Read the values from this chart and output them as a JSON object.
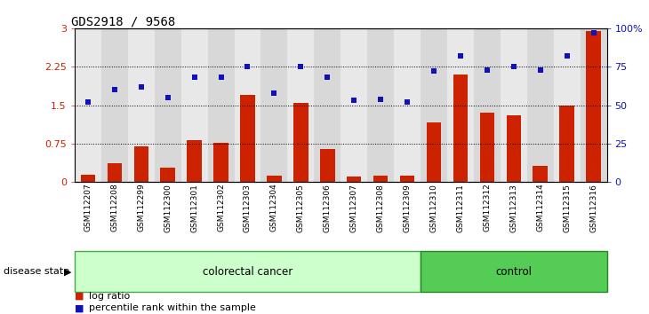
{
  "title": "GDS2918 / 9568",
  "samples": [
    "GSM112207",
    "GSM112208",
    "GSM112299",
    "GSM112300",
    "GSM112301",
    "GSM112302",
    "GSM112303",
    "GSM112304",
    "GSM112305",
    "GSM112306",
    "GSM112307",
    "GSM112308",
    "GSM112309",
    "GSM112310",
    "GSM112311",
    "GSM112312",
    "GSM112313",
    "GSM112314",
    "GSM112315",
    "GSM112316"
  ],
  "log_ratio": [
    0.14,
    0.37,
    0.7,
    0.28,
    0.82,
    0.77,
    1.7,
    0.13,
    1.55,
    0.65,
    0.11,
    0.13,
    0.13,
    1.17,
    2.1,
    1.35,
    1.3,
    0.32,
    1.5,
    2.95
  ],
  "percentile_rank": [
    52,
    60,
    62,
    55,
    68,
    68,
    75,
    58,
    75,
    68,
    53,
    54,
    52,
    72,
    82,
    73,
    75,
    73,
    82,
    97
  ],
  "n_colorectal": 13,
  "n_control": 7,
  "bar_color": "#cc2200",
  "dot_color": "#1111bb",
  "hlines": [
    0.75,
    1.5,
    2.25
  ],
  "ytick_labels_left": [
    "0",
    "0.75",
    "1.5",
    "2.25",
    "3"
  ],
  "ytick_labels_right": [
    "0",
    "25",
    "50",
    "75",
    "100%"
  ],
  "disease_state_label": "disease state",
  "colorectal_label": "colorectal cancer",
  "control_label": "control",
  "legend_bar_label": "log ratio",
  "legend_dot_label": "percentile rank within the sample",
  "bg_color": "#ffffff",
  "col_bg_odd": "#d8d8d8",
  "col_bg_even": "#e8e8e8",
  "colorectal_bg": "#ccffcc",
  "control_bg": "#55cc55",
  "border_color": "#888888"
}
